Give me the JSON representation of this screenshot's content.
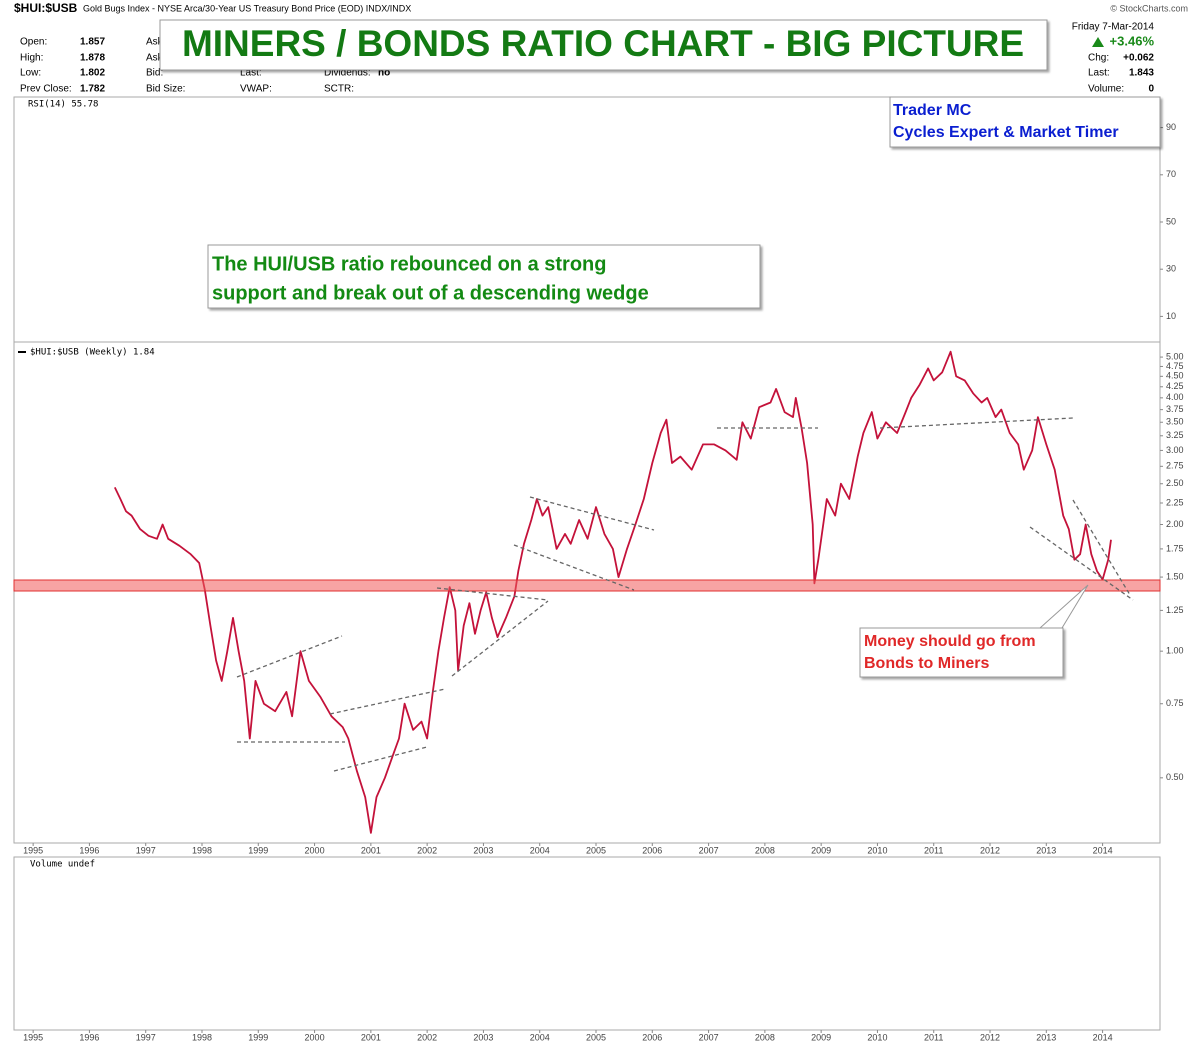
{
  "header": {
    "symbol": "$HUI:$USB",
    "description": "Gold Bugs Index - NYSE Arca/30-Year US Treasury Bond Price (EOD) INDX/INDX",
    "source": "© StockCharts.com",
    "date": "Friday  7-Mar-2014",
    "change_pct": "+3.46%"
  },
  "title": "MINERS / BONDS RATIO CHART - BIG PICTURE",
  "author": [
    "Trader MC",
    "Cycles Expert & Market Timer"
  ],
  "stats": {
    "rows": [
      {
        "label": "Open:",
        "value": "1.857"
      },
      {
        "label": "High:",
        "value": "1.878"
      },
      {
        "label": "Low:",
        "value": "1.802"
      },
      {
        "label": "Prev Close:",
        "value": "1.782"
      }
    ],
    "col2": [
      "Ask:",
      "Ask S",
      "Bid:",
      "Bid Size:"
    ],
    "col3": [
      "Last:",
      "VWAP:"
    ],
    "col4": [
      "Dividends:",
      "SCTR:"
    ],
    "dividends": "no",
    "right": [
      {
        "label": "Chg:",
        "value": "+0.062"
      },
      {
        "label": "Last:",
        "value": "1.843"
      },
      {
        "label": "Volume:",
        "value": "0"
      }
    ]
  },
  "annotations": [
    {
      "lines": [
        "The HUI/USB ratio rebounced on a strong",
        "support and break out of a descending wedge"
      ]
    },
    {
      "lines": [
        "Money should go from",
        "Bonds to Miners"
      ]
    }
  ],
  "chart_data": [
    {
      "type": "line",
      "label": "RSI(14) 55.78",
      "ylim": [
        0,
        100
      ],
      "yticks": [
        10,
        30,
        50,
        70,
        90
      ]
    },
    {
      "type": "line",
      "label": "$HUI:$USB (Weekly) 1.84",
      "yscale": "log",
      "grid": false,
      "xlim": [
        1994.66,
        2015.02
      ],
      "xticks": [
        1995,
        1996,
        1997,
        1998,
        1999,
        2000,
        2001,
        2002,
        2003,
        2004,
        2005,
        2006,
        2007,
        2008,
        2009,
        2010,
        2011,
        2012,
        2013,
        2014
      ],
      "ylim": [
        0.35,
        5.43
      ],
      "yticks": [
        {
          "value": 0.5,
          "label": "0.50"
        },
        {
          "value": 0.75,
          "label": "0.75"
        },
        {
          "value": 1,
          "label": "1.00"
        },
        {
          "value": 1.25,
          "label": "1.25"
        },
        {
          "value": 1.5,
          "label": "1.50"
        },
        {
          "value": 1.75,
          "label": "1.75"
        },
        {
          "value": 2,
          "label": "2.00"
        },
        {
          "value": 2.25,
          "label": "2.25"
        },
        {
          "value": 2.5,
          "label": "2.50"
        },
        {
          "value": 2.75,
          "label": "2.75"
        },
        {
          "value": 3,
          "label": "3.00"
        },
        {
          "value": 3.25,
          "label": "3.25"
        },
        {
          "value": 3.5,
          "label": "3.50"
        },
        {
          "value": 3.75,
          "label": "3.75"
        },
        {
          "value": 4,
          "label": "4.00"
        },
        {
          "value": 4.25,
          "label": "4.25"
        },
        {
          "value": 4.5,
          "label": "4.50"
        },
        {
          "value": 4.75,
          "label": "4.75"
        },
        {
          "value": 5,
          "label": "5.00"
        }
      ],
      "x": [
        1996.45,
        1996.55,
        1996.65,
        1996.75,
        1996.9,
        1997.05,
        1997.2,
        1997.3,
        1997.4,
        1997.6,
        1997.8,
        1997.95,
        1998.05,
        1998.15,
        1998.25,
        1998.35,
        1998.45,
        1998.55,
        1998.65,
        1998.75,
        1998.85,
        1998.95,
        1999.1,
        1999.3,
        1999.5,
        1999.6,
        1999.75,
        1999.9,
        2000.1,
        2000.3,
        2000.5,
        2000.6,
        2000.75,
        2000.9,
        2001.0,
        2001.1,
        2001.25,
        2001.4,
        2001.5,
        2001.6,
        2001.75,
        2001.9,
        2002.0,
        2002.1,
        2002.2,
        2002.3,
        2002.4,
        2002.5,
        2002.55,
        2002.65,
        2002.75,
        2002.85,
        2002.95,
        2003.05,
        2003.15,
        2003.25,
        2003.4,
        2003.55,
        2003.62,
        2003.72,
        2003.85,
        2003.95,
        2004.05,
        2004.15,
        2004.3,
        2004.45,
        2004.55,
        2004.7,
        2004.85,
        2005.0,
        2005.15,
        2005.3,
        2005.4,
        2005.55,
        2005.7,
        2005.85,
        2006.0,
        2006.15,
        2006.25,
        2006.35,
        2006.5,
        2006.7,
        2006.9,
        2007.1,
        2007.3,
        2007.5,
        2007.6,
        2007.75,
        2007.9,
        2008.1,
        2008.2,
        2008.35,
        2008.5,
        2008.55,
        2008.65,
        2008.75,
        2008.85,
        2008.88,
        2008.95,
        2009.1,
        2009.25,
        2009.35,
        2009.5,
        2009.65,
        2009.75,
        2009.9,
        2010.0,
        2010.15,
        2010.35,
        2010.5,
        2010.6,
        2010.75,
        2010.9,
        2011.0,
        2011.15,
        2011.3,
        2011.4,
        2011.55,
        2011.7,
        2011.85,
        2011.95,
        2012.1,
        2012.2,
        2012.35,
        2012.5,
        2012.6,
        2012.75,
        2012.85,
        2013.0,
        2013.15,
        2013.3,
        2013.4,
        2013.5,
        2013.6,
        2013.7,
        2013.8,
        2013.9,
        2014.0,
        2014.1,
        2014.15
      ],
      "series": [
        {
          "name": "$HUI:$USB",
          "color": "#c4123a",
          "values": [
            2.45,
            2.3,
            2.15,
            2.1,
            1.95,
            1.88,
            1.85,
            2.0,
            1.85,
            1.78,
            1.7,
            1.62,
            1.4,
            1.15,
            0.95,
            0.85,
            1.0,
            1.2,
            1.0,
            0.85,
            0.62,
            0.85,
            0.75,
            0.72,
            0.8,
            0.7,
            1.0,
            0.85,
            0.78,
            0.7,
            0.66,
            0.62,
            0.52,
            0.45,
            0.37,
            0.45,
            0.5,
            0.57,
            0.62,
            0.75,
            0.65,
            0.68,
            0.62,
            0.8,
            1.0,
            1.2,
            1.42,
            1.25,
            0.9,
            1.15,
            1.3,
            1.1,
            1.25,
            1.38,
            1.2,
            1.08,
            1.2,
            1.35,
            1.55,
            1.8,
            2.05,
            2.3,
            2.1,
            2.2,
            1.75,
            1.9,
            1.8,
            2.05,
            1.85,
            2.2,
            1.9,
            1.75,
            1.5,
            1.75,
            2.0,
            2.3,
            2.8,
            3.3,
            3.55,
            2.8,
            2.9,
            2.7,
            3.1,
            3.1,
            3.0,
            2.85,
            3.5,
            3.2,
            3.8,
            3.9,
            4.2,
            3.7,
            3.6,
            4.0,
            3.4,
            2.8,
            2.0,
            1.45,
            1.65,
            2.3,
            2.1,
            2.5,
            2.3,
            2.9,
            3.3,
            3.7,
            3.2,
            3.5,
            3.3,
            3.7,
            4.0,
            4.3,
            4.7,
            4.4,
            4.6,
            5.15,
            4.5,
            4.4,
            4.1,
            3.9,
            4.0,
            3.6,
            3.75,
            3.3,
            3.1,
            2.7,
            3.0,
            3.6,
            3.1,
            2.7,
            2.1,
            1.95,
            1.65,
            1.7,
            2.0,
            1.7,
            1.55,
            1.48,
            1.65,
            1.84
          ]
        }
      ]
    },
    {
      "type": "bar",
      "label": "Volume undef",
      "xlim": [
        1994.66,
        2015.02
      ],
      "xticks": [
        1995,
        1996,
        1997,
        1998,
        1999,
        2000,
        2001,
        2002,
        2003,
        2004,
        2005,
        2006,
        2007,
        2008,
        2009,
        2010,
        2011,
        2012,
        2013,
        2014
      ]
    }
  ]
}
